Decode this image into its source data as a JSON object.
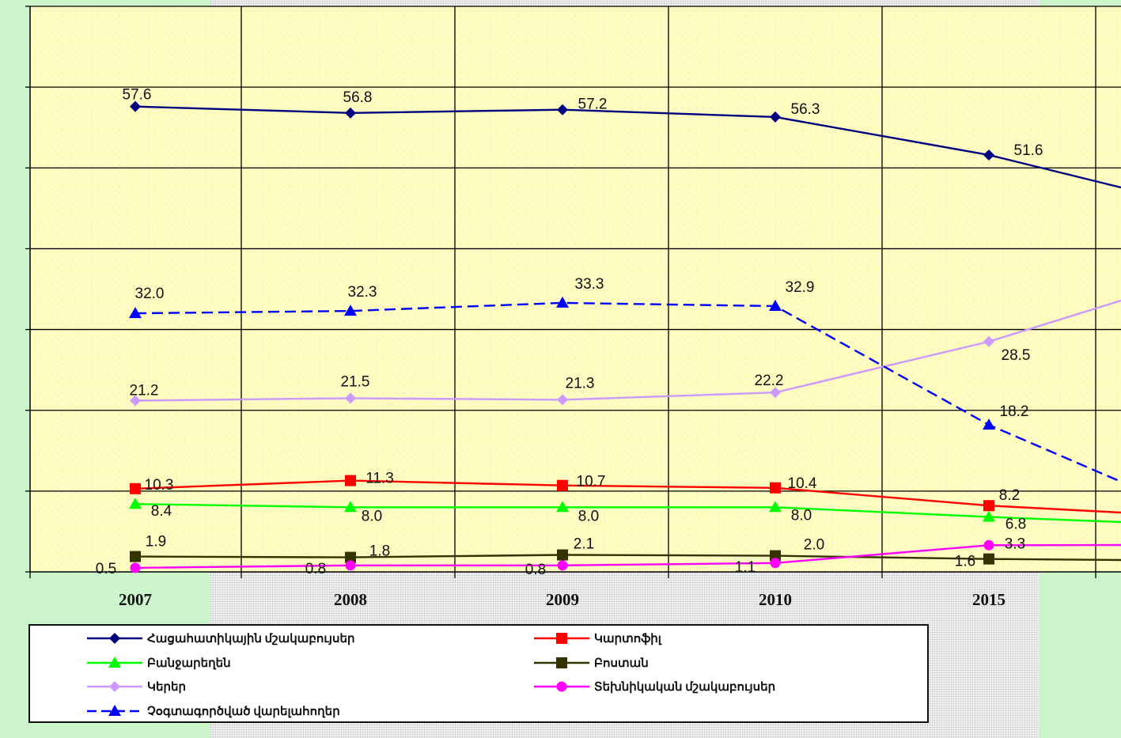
{
  "chart_data": {
    "type": "line",
    "categories": [
      "2007",
      "2008",
      "2009",
      "2010",
      "2015"
    ],
    "ylim": [
      0,
      70
    ],
    "grid": true,
    "legend_position": "bottom",
    "plot_background": "#fdfbbe",
    "series": [
      {
        "name": "Հացահատիկային մշակաբույսեր",
        "color": "#000080",
        "line": "solid",
        "marker": "diamond",
        "values": [
          57.6,
          56.8,
          57.2,
          56.3,
          51.6
        ],
        "labels": [
          "57.6",
          "56.8",
          "57.2",
          "56.3",
          "51.6"
        ]
      },
      {
        "name": "Կարտոֆիլ",
        "color": "#ff0000",
        "line": "solid",
        "marker": "square",
        "values": [
          10.3,
          11.3,
          10.7,
          10.4,
          8.2
        ],
        "labels": [
          "10.3",
          "11.3",
          "10.7",
          "10.4",
          "8.2"
        ]
      },
      {
        "name": "Բանջարեղեն",
        "color": "#00ff00",
        "line": "solid",
        "marker": "triangle",
        "values": [
          8.4,
          8.0,
          8.0,
          8.0,
          6.8
        ],
        "labels": [
          "8.4",
          "8.0",
          "8.0",
          "8.0",
          "6.8"
        ]
      },
      {
        "name": "Բոստան",
        "color": "#333300",
        "line": "solid",
        "marker": "square",
        "values": [
          1.9,
          1.8,
          2.1,
          2.0,
          1.6
        ],
        "labels": [
          "1.9",
          "1.8",
          "2.1",
          "2.0",
          "1.6"
        ]
      },
      {
        "name": "Կերեր",
        "color": "#cc99ff",
        "line": "solid",
        "marker": "diamond",
        "values": [
          21.2,
          21.5,
          21.3,
          22.2,
          28.5
        ],
        "labels": [
          "21.2",
          "21.5",
          "21.3",
          "22.2",
          "28.5"
        ]
      },
      {
        "name": "Տեխնիկական մշակաբույսեր",
        "color": "#ff00ff",
        "line": "solid",
        "marker": "circle",
        "values": [
          0.5,
          0.8,
          0.8,
          1.1,
          3.3
        ],
        "labels": [
          "0.5",
          "0.8",
          "0.8",
          "1.1",
          "3.3"
        ]
      },
      {
        "name": "Չօգտագործված վարելահողեր",
        "color": "#0000ff",
        "line": "dashed",
        "marker": "triangle",
        "values": [
          32.0,
          32.3,
          33.3,
          32.9,
          18.2
        ],
        "labels": [
          "32.0",
          "32.3",
          "33.3",
          "32.9",
          "18.2"
        ]
      }
    ]
  }
}
